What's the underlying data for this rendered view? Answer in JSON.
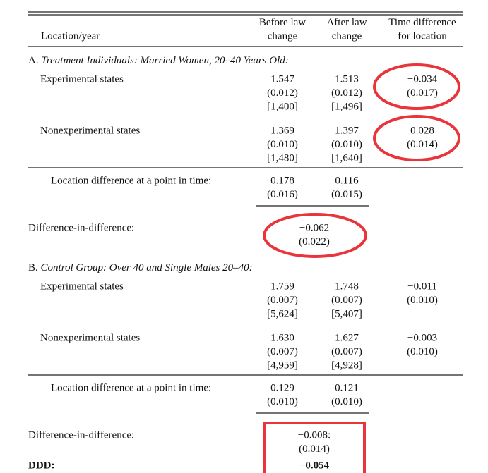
{
  "header": {
    "columns": [
      [
        "Location/year"
      ],
      [
        "Before law",
        "change"
      ],
      [
        "After law",
        "change"
      ],
      [
        "Time difference",
        "for location"
      ]
    ]
  },
  "sections": [
    {
      "title": {
        "prefix": "A.",
        "text": "Treatment Individuals: Married Women, 20–40 Years Old:"
      },
      "rows": [
        {
          "label": "Experimental states",
          "cells": [
            [
              "1.547",
              "(0.012)",
              "[1,400]"
            ],
            [
              "1.513",
              "(0.012)",
              "[1,496]"
            ],
            [
              "−0.034",
              "(0.017)"
            ]
          ]
        },
        {
          "label": "Nonexperimental states",
          "cells": [
            [
              "1.369",
              "(0.010)",
              "[1,480]"
            ],
            [
              "1.397",
              "(0.010)",
              "[1,640]"
            ],
            [
              "0.028",
              "(0.014)"
            ]
          ]
        }
      ],
      "location_difference": {
        "label": "Location difference at a point in time:",
        "cells": [
          [
            "0.178",
            "(0.016)"
          ],
          [
            "0.116",
            "(0.015)"
          ]
        ]
      },
      "did": {
        "label": "Difference-in-difference:",
        "cells": [
          "−0.062",
          "(0.022)"
        ]
      }
    },
    {
      "title": {
        "prefix": "B.",
        "text": "Control Group: Over 40 and Single Males 20–40:"
      },
      "rows": [
        {
          "label": "Experimental states",
          "cells": [
            [
              "1.759",
              "(0.007)",
              "[5,624]"
            ],
            [
              "1.748",
              "(0.007)",
              "[5,407]"
            ],
            [
              "−0.011",
              "(0.010)"
            ]
          ]
        },
        {
          "label": "Nonexperimental states",
          "cells": [
            [
              "1.630",
              "(0.007)",
              "[4,959]"
            ],
            [
              "1.627",
              "(0.007)",
              "[4,928]"
            ],
            [
              "−0.003",
              "(0.010)"
            ]
          ]
        }
      ],
      "location_difference": {
        "label": "Location difference at a point in time:",
        "cells": [
          [
            "0.129",
            "(0.010)"
          ],
          [
            "0.121",
            "(0.010)"
          ]
        ]
      },
      "did": {
        "label": "Difference-in-difference:",
        "cells": [
          "−0.008:",
          "(0.014)"
        ]
      }
    }
  ],
  "ddd": {
    "label": "DDD:",
    "value": "−0.054"
  }
}
